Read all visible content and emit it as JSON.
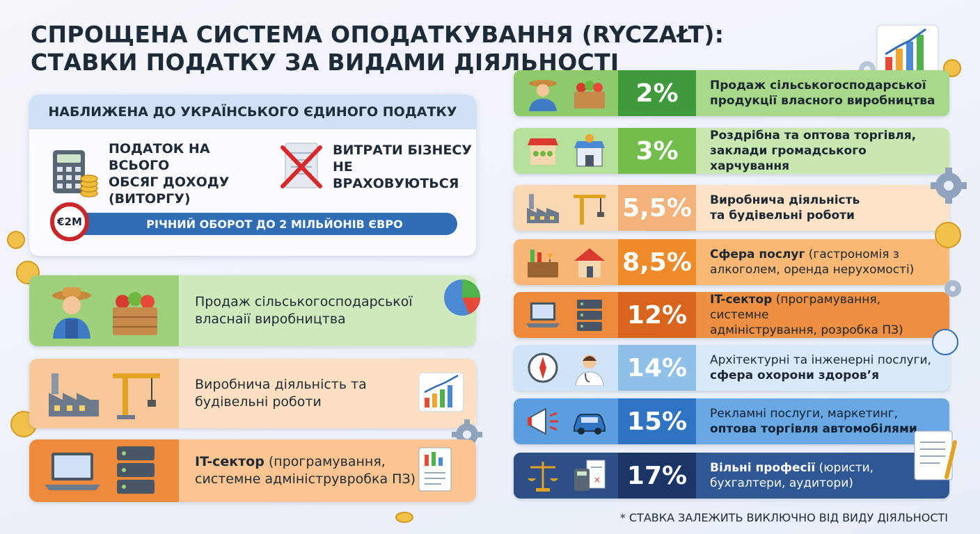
{
  "title": {
    "line1": "СПРОЩЕНА СИСТЕМА ОПОДАТКУВАННЯ (RYCZAŁT):",
    "line2": "СТАВКИ ПОДАТКУ ЗА ВИДАМИ ДІЯЛЬНОСТІ"
  },
  "info_card": {
    "header": "НАБЛИЖЕНА ДО УКРАЇНСЬКОГО ЄДИНОГО ПОДАТКУ",
    "feature1": {
      "line1": "ПОДАТОК НА ВСЬОГО",
      "line2": "ОБСЯГ ДОХОДУ",
      "line3": "(ВИТОРГУ)",
      "icon": "calculator-coins-icon"
    },
    "feature2": {
      "line1": "ВИТРАТИ БІЗНЕСУ",
      "line2": "НЕ ВРАХОВУЮТЬСЯ",
      "icon": "crossed-document-icon"
    },
    "turnover_badge": "€2M",
    "turnover_text": "РІЧНИЙ ОБОРОТ ДО 2 МІЛЬЙОНІВ ЄВРО"
  },
  "left_sectors": [
    {
      "line1": "Продаж сільськогосподарської",
      "line2": "власнаії виробництва"
    },
    {
      "line1": "Виробнича діяльність та",
      "line2": "будівельні роботи"
    },
    {
      "bold": "IT-сектор",
      "rest1": " (програмування,",
      "line2": "системне адмініструвробка ПЗ)"
    }
  ],
  "rates": [
    {
      "rate": "2%",
      "line1": "Продаж сільськогосподарської",
      "line2": "продукції власного виробництва",
      "color_left": "#8fca6a",
      "color_rate": "#3f9a3c",
      "color_text": "#a8d98a",
      "text_color": "#1c2733"
    },
    {
      "rate": "3%",
      "line1": "Роздрібна та оптова торгівля,",
      "line2": "заклади громадського харчування",
      "color_left": "#b6df98",
      "color_rate": "#73bd4b",
      "color_text": "#c8e8b0",
      "text_color": "#1c2733"
    },
    {
      "rate": "5,5%",
      "line1": "Виробнича діяльність",
      "line2": "та будівельні роботи",
      "color_left": "#fbd8b4",
      "color_rate": "#f2b27a",
      "color_text": "#fde4c8",
      "text_color": "#1c2733"
    },
    {
      "rate": "8,5%",
      "bold": "Сфера послуг",
      "rest1": " (гастрономія з",
      "line2": "алкоголем, оренда нерухомості)",
      "color_left": "#f8b574",
      "color_rate": "#ee8a2a",
      "color_text": "#f9b874",
      "text_color": "#1c2733"
    },
    {
      "rate": "12%",
      "bold": "IT-сектор",
      "rest1": " (програмування, системне",
      "line2": "адміністрування, розробка ПЗ)",
      "color_left": "#ee8a3a",
      "color_rate": "#d9641c",
      "color_text": "#ef8f42",
      "text_color": "#1c2733"
    },
    {
      "rate": "14%",
      "line1": "Архітектурні та інженерні послуги,",
      "bold2": "сфера охорони здоров’я",
      "color_left": "#cfe4f6",
      "color_rate": "#8ec0e8",
      "color_text": "#d8eaf8",
      "text_color": "#1c2733"
    },
    {
      "rate": "15%",
      "line1": "Рекламні послуги, маркетинг,",
      "bold2": "оптова торгівля автомобілями",
      "color_left": "#5b9ee0",
      "color_rate": "#2f73c3",
      "color_text": "#6aa8e4",
      "text_color": "#102030"
    },
    {
      "rate": "17%",
      "bold": "Вільні професії",
      "rest1": " (юристи,",
      "line2": "бухгалтери, аудитори)",
      "color_left": "#2e4f86",
      "color_rate": "#1b3566",
      "color_text": "#2f5794",
      "text_color": "#ffffff"
    }
  ],
  "footnote": "* СТАВКА ЗАЛЕЖИТЬ ВИКЛЮЧНО ВІД ВИДУ ДІЯЛЬНОСТІ"
}
